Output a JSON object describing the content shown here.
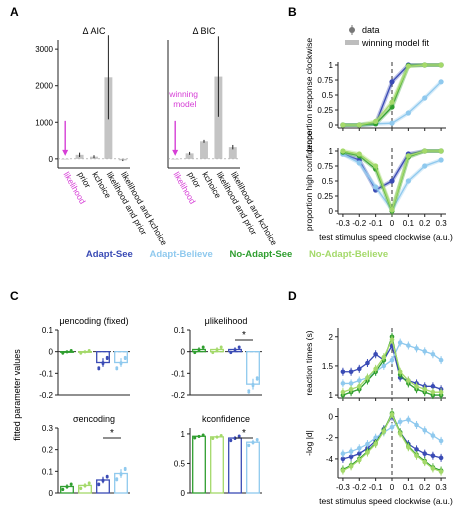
{
  "panels": {
    "A": "A",
    "B": "B",
    "C": "C",
    "D": "D"
  },
  "colors": {
    "adapt_see": "#3a4bb5",
    "adapt_believe": "#8fc9ee",
    "noadapt_see": "#2f9e2f",
    "noadapt_believe": "#a4d96a",
    "model_fit": "#bdbdbd",
    "highlight": "#d63fd6",
    "bar": "#c4c4c4"
  },
  "legend": {
    "adapt_see": "Adapt-See",
    "adapt_believe": "Adapt-Believe",
    "noadapt_see": "No-Adapt-See",
    "noadapt_believe": "No-Adapt-Believe"
  },
  "b_legend": {
    "data": "data",
    "fit": "winning model fit"
  },
  "chart_data": [
    {
      "type": "bar",
      "panel": "A",
      "title": "Δ AIC",
      "categories": [
        "likelihood",
        "prior",
        "k_choice",
        "likelihood and prior",
        "likelihood and k_choice"
      ],
      "category_labels": [
        "likelihood",
        "prior",
        "kchoice",
        "likelihood and prior",
        "likelihood and kchoice"
      ],
      "values": [
        0,
        110,
        60,
        2230,
        -40
      ],
      "errors": [
        0,
        60,
        40,
        1150,
        20
      ],
      "ylim": [
        -250,
        3250
      ],
      "yticks": [
        0,
        1000,
        2000,
        3000
      ],
      "annotation": ""
    },
    {
      "type": "bar",
      "panel": "A",
      "title": "Δ BIC",
      "categories": [
        "likelihood",
        "prior",
        "k_choice",
        "likelihood and prior",
        "likelihood and k_choice"
      ],
      "category_labels": [
        "likelihood",
        "prior",
        "kchoice",
        "likelihood and prior",
        "likelihood and kchoice"
      ],
      "values": [
        0,
        150,
        480,
        2250,
        320
      ],
      "errors": [
        0,
        40,
        40,
        1100,
        60
      ],
      "ylim": [
        -250,
        3250
      ],
      "yticks": [],
      "annotation": "winning model"
    },
    {
      "type": "line",
      "panel": "B",
      "ylabel": "proportion response clockwise",
      "x": [
        -0.3,
        -0.2,
        -0.1,
        0,
        0.1,
        0.2,
        0.3
      ],
      "xlim": [
        -0.33,
        0.33
      ],
      "ylim": [
        -0.05,
        1.05
      ],
      "yticks": [
        0,
        0.25,
        0.5,
        0.75,
        1
      ],
      "series": [
        {
          "name": "Adapt-See",
          "values": [
            0.0,
            0.0,
            0.02,
            0.72,
            1.0,
            1.0,
            1.0
          ]
        },
        {
          "name": "Adapt-Believe",
          "values": [
            0.0,
            0.0,
            0.02,
            0.03,
            0.2,
            0.45,
            0.72
          ]
        },
        {
          "name": "No-Adapt-See",
          "values": [
            0.0,
            0.0,
            0.02,
            0.3,
            0.99,
            1.0,
            1.0
          ]
        },
        {
          "name": "No-Adapt-Believe",
          "values": [
            0.0,
            0.0,
            0.06,
            0.38,
            0.98,
            1.0,
            1.0
          ]
        }
      ]
    },
    {
      "type": "line",
      "panel": "B",
      "ylabel": "proportion high confidence",
      "xlabel": "test stimulus speed clockwise (a.u.)",
      "x": [
        -0.3,
        -0.2,
        -0.1,
        0,
        0.1,
        0.2,
        0.3
      ],
      "xlim": [
        -0.33,
        0.33
      ],
      "ylim": [
        -0.05,
        1.05
      ],
      "yticks": [
        0,
        0.25,
        0.5,
        0.75,
        1
      ],
      "xticks": [
        "-0.3",
        "-0.2",
        "-0.1",
        "0",
        "0.1",
        "0.2",
        "0.3"
      ],
      "series": [
        {
          "name": "Adapt-See",
          "values": [
            0.95,
            0.85,
            0.35,
            0.5,
            0.95,
            1.0,
            1.0
          ]
        },
        {
          "name": "Adapt-Believe",
          "values": [
            0.95,
            0.8,
            0.4,
            0.02,
            0.5,
            0.75,
            0.85
          ]
        },
        {
          "name": "No-Adapt-See",
          "values": [
            0.98,
            0.92,
            0.7,
            0.0,
            0.9,
            1.0,
            1.0
          ]
        },
        {
          "name": "No-Adapt-Believe",
          "values": [
            1.0,
            0.95,
            0.75,
            0.02,
            0.92,
            1.0,
            1.0
          ]
        }
      ]
    },
    {
      "type": "bar",
      "panel": "C",
      "title": "μencoding (fixed)",
      "ylim": [
        -0.2,
        0.1
      ],
      "yticks": [
        "0.1",
        "0",
        "-0.1",
        "-0.2"
      ],
      "values": [
        0.0,
        0.0,
        -0.05,
        -0.05
      ],
      "errors": [
        0.005,
        0.005,
        0.02,
        0.02
      ],
      "significance": ""
    },
    {
      "type": "bar",
      "panel": "C",
      "title": "μlikelihood",
      "ylim": [
        -0.2,
        0.1
      ],
      "yticks": [
        "0.1",
        "0",
        "-0.1",
        "-0.2"
      ],
      "values": [
        0.01,
        0.01,
        0.01,
        -0.15
      ],
      "errors": [
        0.01,
        0.01,
        0.01,
        0.025
      ],
      "significance": "*"
    },
    {
      "type": "bar",
      "panel": "C",
      "title": "σencoding",
      "ylim": [
        0,
        0.3
      ],
      "yticks": [
        "0.3",
        "0.2",
        "0.1",
        "0"
      ],
      "values": [
        0.03,
        0.035,
        0.06,
        0.09
      ],
      "errors": [
        0.01,
        0.01,
        0.015,
        0.02
      ],
      "significance": "*"
    },
    {
      "type": "bar",
      "panel": "C",
      "title": "kconfidence",
      "ylim": [
        0,
        1.1
      ],
      "yticks": [
        "1",
        "0.5",
        "0"
      ],
      "values": [
        0.96,
        0.95,
        0.93,
        0.86
      ],
      "errors": [
        0.02,
        0.02,
        0.03,
        0.04
      ],
      "significance": "*"
    },
    {
      "type": "line",
      "panel": "D",
      "ylabel": "reaction times (s)",
      "x": [
        -0.3,
        -0.25,
        -0.2,
        -0.15,
        -0.1,
        -0.05,
        0,
        0.05,
        0.1,
        0.15,
        0.2,
        0.25,
        0.3
      ],
      "xlim": [
        -0.33,
        0.33
      ],
      "ylim": [
        0.95,
        2.15
      ],
      "yticks": [
        1,
        1.5,
        2
      ],
      "series": [
        {
          "name": "Adapt-See",
          "values": [
            1.4,
            1.4,
            1.45,
            1.55,
            1.7,
            1.6,
            1.85,
            1.3,
            1.25,
            1.2,
            1.15,
            1.15,
            1.1
          ]
        },
        {
          "name": "Adapt-Believe",
          "values": [
            1.2,
            1.2,
            1.25,
            1.3,
            1.4,
            1.5,
            1.6,
            1.9,
            1.85,
            1.8,
            1.75,
            1.7,
            1.6
          ]
        },
        {
          "name": "No-Adapt-See",
          "values": [
            1.0,
            1.05,
            1.1,
            1.25,
            1.4,
            1.6,
            2.0,
            1.35,
            1.2,
            1.1,
            1.05,
            1.0,
            1.0
          ]
        },
        {
          "name": "No-Adapt-Believe",
          "values": [
            1.05,
            1.1,
            1.15,
            1.3,
            1.45,
            1.65,
            1.95,
            1.4,
            1.25,
            1.15,
            1.1,
            1.05,
            1.05
          ]
        }
      ]
    },
    {
      "type": "line",
      "panel": "D",
      "ylabel": "-log |d|",
      "xlabel": "test stimulus speed clockwise (a.u.)",
      "x": [
        -0.3,
        -0.25,
        -0.2,
        -0.15,
        -0.1,
        -0.05,
        0,
        0.05,
        0.1,
        0.15,
        0.2,
        0.25,
        0.3
      ],
      "xlim": [
        -0.33,
        0.33
      ],
      "ylim": [
        -5.8,
        0.8
      ],
      "yticks": [
        0,
        -2,
        -4
      ],
      "xticks": [
        "-0.3",
        "-0.2",
        "-0.1",
        "0",
        "0.1",
        "0.2",
        "0.3"
      ],
      "series": [
        {
          "name": "Adapt-See",
          "values": [
            -4.0,
            -3.8,
            -3.5,
            -3.0,
            -2.3,
            -1.2,
            0.0,
            -1.5,
            -2.6,
            -3.1,
            -3.5,
            -3.7,
            -3.9
          ]
        },
        {
          "name": "Adapt-Believe",
          "values": [
            -3.5,
            -3.3,
            -3.0,
            -2.6,
            -2.0,
            -1.5,
            -1.0,
            -0.5,
            -0.3,
            -0.8,
            -1.3,
            -1.8,
            -2.3
          ]
        },
        {
          "name": "No-Adapt-See",
          "values": [
            -5.0,
            -4.6,
            -4.0,
            -3.3,
            -2.5,
            -1.3,
            0.3,
            -1.5,
            -2.8,
            -3.6,
            -4.2,
            -4.8,
            -5.1
          ]
        },
        {
          "name": "No-Adapt-Believe",
          "values": [
            -5.1,
            -4.7,
            -4.1,
            -3.4,
            -2.6,
            -1.4,
            0.2,
            -1.6,
            -2.9,
            -3.7,
            -4.3,
            -4.9,
            -5.2
          ]
        }
      ]
    }
  ],
  "c_ylabel": "fitted parameter values"
}
